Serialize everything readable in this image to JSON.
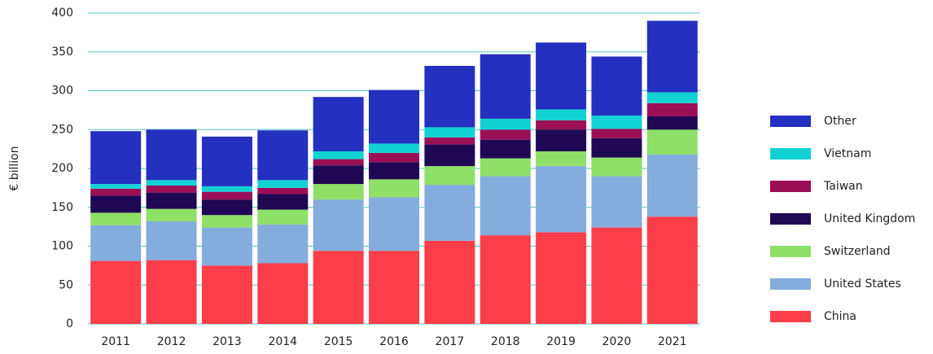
{
  "chart_data": {
    "type": "stacked_bar",
    "y_label": "€ billion",
    "categories": [
      "2011",
      "2012",
      "2013",
      "2014",
      "2015",
      "2016",
      "2017",
      "2018",
      "2019",
      "2020",
      "2021"
    ],
    "series": [
      {
        "name": "China",
        "color": "#fc3d4a",
        "values": [
          81,
          82,
          75,
          78,
          94,
          94,
          107,
          114,
          118,
          124,
          138
        ]
      },
      {
        "name": "United States",
        "color": "#84acdc",
        "values": [
          46,
          50,
          49,
          50,
          66,
          69,
          72,
          76,
          85,
          66,
          80
        ]
      },
      {
        "name": "Switzerland",
        "color": "#8ee066",
        "values": [
          16,
          16,
          16,
          19,
          20,
          23,
          24,
          23,
          19,
          24,
          32
        ]
      },
      {
        "name": "United Kingdom",
        "color": "#1f0853",
        "values": [
          22,
          21,
          20,
          20,
          24,
          22,
          28,
          24,
          28,
          25,
          17
        ]
      },
      {
        "name": "Taiwan",
        "color": "#9b0f56",
        "values": [
          9,
          9,
          10,
          8,
          8,
          12,
          9,
          13,
          12,
          12,
          17
        ]
      },
      {
        "name": "Vietnam",
        "color": "#12d2d4",
        "values": [
          6,
          7,
          7,
          10,
          10,
          12,
          13,
          14,
          14,
          17,
          14
        ]
      },
      {
        "name": "Other",
        "color": "#2430c0",
        "values": [
          68,
          65,
          64,
          64,
          70,
          69,
          79,
          83,
          86,
          76,
          92
        ]
      }
    ],
    "ylim": [
      0,
      400
    ],
    "yticks": [
      0,
      50,
      100,
      150,
      200,
      250,
      300,
      350,
      400
    ],
    "grid": true,
    "legend": "right"
  }
}
